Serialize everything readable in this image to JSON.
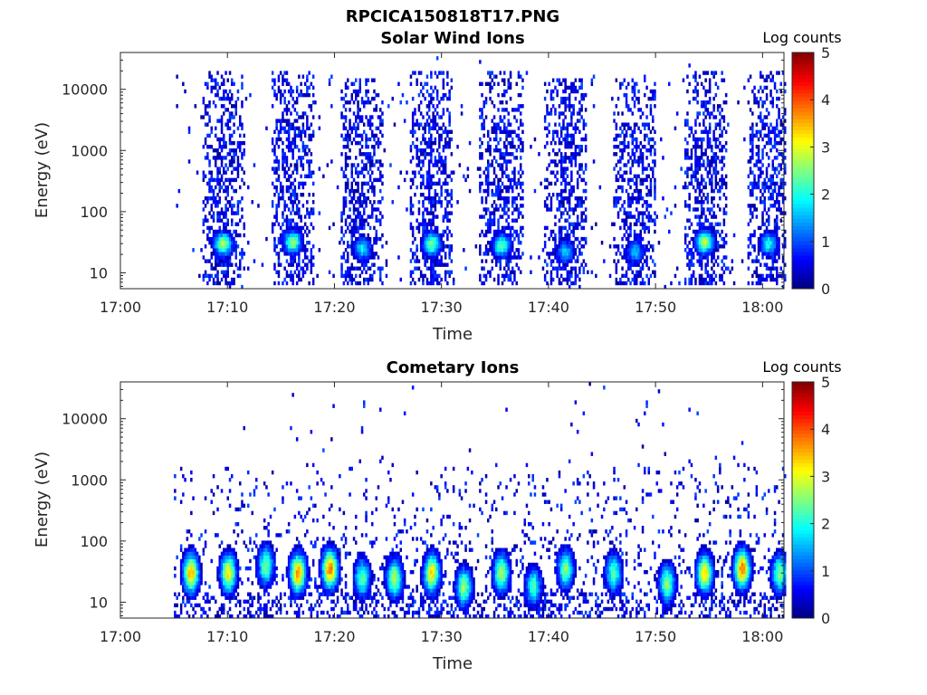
{
  "figure": {
    "filename_title": "RPCICA150818T17.PNG"
  },
  "colors": {
    "colormap": "jet",
    "axis": "#262626"
  },
  "chart_data": [
    {
      "type": "heatmap",
      "title": "Solar Wind Ions",
      "xlabel": "Time",
      "ylabel": "Energy (eV)",
      "y_scale": "log",
      "xlim": [
        "17:00",
        "18:02"
      ],
      "ylim": [
        5.5,
        40000
      ],
      "x_ticks": [
        "17:00",
        "17:10",
        "17:20",
        "17:30",
        "17:40",
        "17:50",
        "18:00"
      ],
      "y_ticks": [
        "10",
        "100",
        "1000",
        "10000"
      ],
      "colorbar": {
        "label": "Log counts",
        "min": 0,
        "max": 5,
        "ticks": [
          "0",
          "1",
          "2",
          "3",
          "4",
          "5"
        ]
      },
      "data_start": "17:05",
      "bursts": [
        {
          "center": "17:09.5",
          "e_low": 6,
          "e_high": 20000,
          "peak_energy": 30,
          "peak_log_counts": 2.8
        },
        {
          "center": "17:16.0",
          "e_low": 6,
          "e_high": 20000,
          "peak_energy": 32,
          "peak_log_counts": 2.6
        },
        {
          "center": "17:22.5",
          "e_low": 6,
          "e_high": 15000,
          "peak_energy": 25,
          "peak_log_counts": 1.8
        },
        {
          "center": "17:29.0",
          "e_low": 6,
          "e_high": 20000,
          "peak_energy": 30,
          "peak_log_counts": 2.5
        },
        {
          "center": "17:35.5",
          "e_low": 6,
          "e_high": 20000,
          "peak_energy": 28,
          "peak_log_counts": 2.3
        },
        {
          "center": "17:41.5",
          "e_low": 6,
          "e_high": 15000,
          "peak_energy": 22,
          "peak_log_counts": 1.6
        },
        {
          "center": "17:48.0",
          "e_low": 6,
          "e_high": 15000,
          "peak_energy": 22,
          "peak_log_counts": 1.5
        },
        {
          "center": "17:54.5",
          "e_low": 6,
          "e_high": 20000,
          "peak_energy": 32,
          "peak_log_counts": 2.8
        },
        {
          "center": "18:00.5",
          "e_low": 6,
          "e_high": 20000,
          "peak_energy": 30,
          "peak_log_counts": 2.0
        }
      ]
    },
    {
      "type": "heatmap",
      "title": "Cometary Ions",
      "xlabel": "Time",
      "ylabel": "Energy (eV)",
      "y_scale": "log",
      "xlim": [
        "17:00",
        "18:02"
      ],
      "ylim": [
        5.5,
        40000
      ],
      "x_ticks": [
        "17:00",
        "17:10",
        "17:20",
        "17:30",
        "17:40",
        "17:50",
        "18:00"
      ],
      "y_ticks": [
        "10",
        "100",
        "1000",
        "10000"
      ],
      "colorbar": {
        "label": "Log counts",
        "min": 0,
        "max": 5,
        "ticks": [
          "0",
          "1",
          "2",
          "3",
          "4",
          "5"
        ]
      },
      "data_start": "17:05",
      "blobs": [
        {
          "center": "17:06.5",
          "peak_energy": 30,
          "peak_log_counts": 3.5
        },
        {
          "center": "17:10.0",
          "peak_energy": 30,
          "peak_log_counts": 3.2
        },
        {
          "center": "17:13.5",
          "peak_energy": 40,
          "peak_log_counts": 2.5
        },
        {
          "center": "17:16.5",
          "peak_energy": 30,
          "peak_log_counts": 3.7
        },
        {
          "center": "17:19.5",
          "peak_energy": 35,
          "peak_log_counts": 3.8
        },
        {
          "center": "17:22.5",
          "peak_energy": 25,
          "peak_log_counts": 2.3
        },
        {
          "center": "17:25.5",
          "peak_energy": 25,
          "peak_log_counts": 2.8
        },
        {
          "center": "17:29.0",
          "peak_energy": 30,
          "peak_log_counts": 3.3
        },
        {
          "center": "17:32.0",
          "peak_energy": 18,
          "peak_log_counts": 2.6
        },
        {
          "center": "17:35.5",
          "peak_energy": 30,
          "peak_log_counts": 2.8
        },
        {
          "center": "17:38.5",
          "peak_energy": 18,
          "peak_log_counts": 2.2
        },
        {
          "center": "17:41.5",
          "peak_energy": 35,
          "peak_log_counts": 2.5
        },
        {
          "center": "17:46.0",
          "peak_energy": 30,
          "peak_log_counts": 2.3
        },
        {
          "center": "17:51.0",
          "peak_energy": 20,
          "peak_log_counts": 2.6
        },
        {
          "center": "17:54.5",
          "peak_energy": 30,
          "peak_log_counts": 3.3
        },
        {
          "center": "17:58.0",
          "peak_energy": 35,
          "peak_log_counts": 3.8
        },
        {
          "center": "18:01.5",
          "peak_energy": 30,
          "peak_log_counts": 2.5
        }
      ]
    }
  ]
}
